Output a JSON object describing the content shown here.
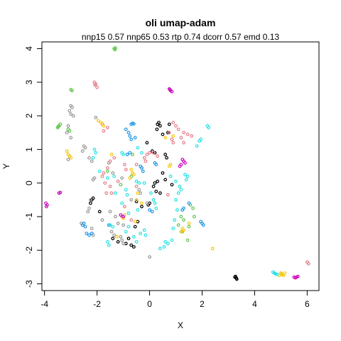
{
  "chart_data": {
    "type": "scatter",
    "title": "oli umap-adam",
    "subtitle": "nnp15 0.57 nnp65 0.53 rtp 0.74 dcorr 0.57 emd 0.13",
    "xlabel": "X",
    "ylabel": "Y",
    "xlim": [
      -4.1,
      6.45
    ],
    "ylim": [
      -3.2,
      4.2
    ],
    "xticks": [
      -4,
      -2,
      0,
      2,
      4,
      6
    ],
    "yticks": [
      -3,
      -2,
      -1,
      0,
      1,
      2,
      3,
      4
    ],
    "grid": false,
    "legend": "none",
    "colors": [
      "#000000",
      "#999999",
      "#61c64f",
      "#e57f8c",
      "#f5c710",
      "#2297e6",
      "#28e2e5",
      "#cd0bbc"
    ],
    "series": [
      {
        "color": "#000000",
        "points": [
          [
            0.3,
            1.75
          ],
          [
            0.35,
            1.8
          ],
          [
            0.4,
            1.7
          ],
          [
            0.28,
            1.6
          ],
          [
            0.5,
            1.45
          ],
          [
            0.7,
            1.5
          ],
          [
            0.75,
            1.75
          ],
          [
            -0.1,
            1.2
          ],
          [
            0.1,
            0.95
          ],
          [
            0.2,
            0.9
          ],
          [
            0.6,
            0.85
          ],
          [
            0.65,
            0.75
          ],
          [
            0.5,
            0.3
          ],
          [
            0.6,
            0.1
          ],
          [
            0.85,
            -0.05
          ],
          [
            0.15,
            -0.1
          ],
          [
            0.2,
            0.0
          ],
          [
            0.3,
            0.05
          ],
          [
            0.25,
            -0.25
          ],
          [
            0.4,
            -0.3
          ],
          [
            0.0,
            -0.6
          ],
          [
            -0.05,
            -0.65
          ],
          [
            -0.5,
            -0.55
          ],
          [
            -0.3,
            -0.7
          ],
          [
            -0.45,
            -1.15
          ],
          [
            -0.55,
            -1.3
          ],
          [
            -2.2,
            -0.5
          ],
          [
            -2.15,
            -0.45
          ],
          [
            -2.25,
            -0.6
          ],
          [
            -1.9,
            -0.85
          ],
          [
            -1.4,
            -1.65
          ],
          [
            -1.2,
            -1.75
          ],
          [
            -0.9,
            -1.8
          ],
          [
            -0.7,
            -1.85
          ],
          [
            -0.6,
            -1.9
          ],
          [
            -0.8,
            -1.65
          ],
          [
            3.25,
            -2.8
          ],
          [
            3.3,
            -2.83
          ],
          [
            3.32,
            -2.86
          ],
          [
            3.27,
            -2.78
          ]
        ]
      },
      {
        "color": "#999999",
        "points": [
          [
            -3.0,
            2.3
          ],
          [
            -2.95,
            2.25
          ],
          [
            -3.05,
            2.15
          ],
          [
            -3.0,
            2.05
          ],
          [
            -2.9,
            2.0
          ],
          [
            -3.1,
            1.7
          ],
          [
            -3.15,
            1.5
          ],
          [
            -3.0,
            1.35
          ],
          [
            -3.05,
            0.8
          ],
          [
            -3.1,
            0.7
          ],
          [
            -2.5,
            1.1
          ],
          [
            -2.45,
            1.05
          ],
          [
            -2.55,
            0.95
          ],
          [
            -2.3,
            0.75
          ],
          [
            -2.2,
            0.65
          ],
          [
            -2.15,
            0.1
          ],
          [
            -2.1,
            0.15
          ],
          [
            -2.25,
            -0.5
          ],
          [
            -2.3,
            -0.75
          ],
          [
            -2.35,
            -0.85
          ],
          [
            -2.6,
            -1.2
          ],
          [
            -2.2,
            -1.35
          ],
          [
            -2.2,
            -1.5
          ],
          [
            -2.15,
            -1.55
          ],
          [
            -1.8,
            -1.1
          ],
          [
            -1.5,
            -0.85
          ],
          [
            -1.3,
            -1.0
          ],
          [
            -1.2,
            -1.2
          ],
          [
            -1.0,
            -1.25
          ],
          [
            -1.45,
            -1.45
          ],
          [
            -1.35,
            -1.55
          ],
          [
            -1.1,
            -1.6
          ],
          [
            -1.05,
            -1.7
          ],
          [
            -1.0,
            -1.8
          ],
          [
            -0.4,
            -0.2
          ],
          [
            -0.35,
            -0.3
          ],
          [
            -0.7,
            -0.5
          ],
          [
            -0.1,
            -0.6
          ],
          [
            0.0,
            -2.2
          ],
          [
            -1.4,
            0.3
          ],
          [
            -1.55,
            0.6
          ],
          [
            -2.05,
            1.95
          ],
          [
            -1.05,
            0.15
          ]
        ]
      },
      {
        "color": "#61c64f",
        "points": [
          [
            -1.35,
            4.0
          ],
          [
            -1.3,
            4.02
          ],
          [
            -1.32,
            3.97
          ],
          [
            -3.0,
            2.78
          ],
          [
            -2.95,
            2.75
          ],
          [
            -3.1,
            1.6
          ],
          [
            -3.05,
            1.55
          ],
          [
            -3.5,
            1.65
          ],
          [
            -3.45,
            1.7
          ],
          [
            -3.4,
            1.75
          ],
          [
            -3.48,
            1.68
          ],
          [
            -0.65,
            0.85
          ],
          [
            -0.7,
            0.2
          ],
          [
            -1.6,
            0.35
          ],
          [
            -1.1,
            -0.05
          ],
          [
            1.2,
            -1.0
          ],
          [
            1.3,
            -1.1
          ],
          [
            1.55,
            -0.65
          ],
          [
            1.65,
            -0.75
          ],
          [
            1.7,
            -1.0
          ],
          [
            1.5,
            -1.3
          ],
          [
            1.45,
            -1.7
          ],
          [
            1.1,
            -1.25
          ],
          [
            1.25,
            -1.45
          ]
        ]
      },
      {
        "color": "#e57f8c",
        "points": [
          [
            -2.1,
            3.0
          ],
          [
            -2.05,
            2.95
          ],
          [
            -2.0,
            2.85
          ],
          [
            -2.08,
            2.92
          ],
          [
            -1.8,
            1.75
          ],
          [
            -1.6,
            1.65
          ],
          [
            -1.75,
            1.55
          ],
          [
            0.9,
            1.8
          ],
          [
            1.0,
            1.7
          ],
          [
            1.1,
            1.6
          ],
          [
            1.3,
            1.5
          ],
          [
            1.45,
            1.45
          ],
          [
            1.6,
            1.4
          ],
          [
            0.75,
            1.5
          ],
          [
            0.85,
            1.3
          ],
          [
            0.9,
            1.2
          ],
          [
            1.2,
            1.35
          ],
          [
            1.3,
            1.2
          ],
          [
            0.15,
            0.9
          ],
          [
            0.0,
            0.9
          ],
          [
            -0.1,
            0.85
          ],
          [
            -0.2,
            0.75
          ],
          [
            -0.15,
            0.65
          ],
          [
            0.3,
            0.8
          ],
          [
            -1.35,
            0.75
          ],
          [
            -1.5,
            0.65
          ],
          [
            -1.6,
            0.45
          ],
          [
            -1.75,
            0.3
          ],
          [
            -1.8,
            0.2
          ],
          [
            -1.7,
            0.0
          ],
          [
            -1.5,
            -0.1
          ],
          [
            -1.45,
            -0.3
          ],
          [
            -0.95,
            0.55
          ],
          [
            -0.9,
            0.4
          ],
          [
            -0.5,
            0.55
          ],
          [
            -0.3,
            0.45
          ],
          [
            -1.2,
            0.05
          ],
          [
            -0.5,
            -0.1
          ],
          [
            -0.95,
            -0.7
          ],
          [
            -1.05,
            -1.0
          ],
          [
            -0.7,
            -1.1
          ],
          [
            6.0,
            -2.35
          ],
          [
            6.05,
            -2.4
          ],
          [
            -1.65,
            -0.3
          ],
          [
            0.7,
            -0.35
          ]
        ]
      },
      {
        "color": "#f5c710",
        "points": [
          [
            -1.95,
            1.85
          ],
          [
            -1.85,
            1.8
          ],
          [
            -1.75,
            1.7
          ],
          [
            -3.15,
            0.95
          ],
          [
            -3.1,
            0.85
          ],
          [
            -3.0,
            0.75
          ],
          [
            -3.05,
            0.8
          ],
          [
            0.6,
            1.35
          ],
          [
            0.9,
            1.4
          ],
          [
            0.75,
            0.5
          ],
          [
            0.8,
            0.55
          ],
          [
            -1.45,
            0.85
          ],
          [
            -0.7,
            0.4
          ],
          [
            -0.65,
            0.3
          ],
          [
            -0.6,
            0.25
          ],
          [
            -0.75,
            0.15
          ],
          [
            -0.3,
            -0.6
          ],
          [
            -0.45,
            -0.3
          ],
          [
            -0.5,
            -0.5
          ],
          [
            -0.95,
            -0.95
          ],
          [
            -1.0,
            -1.05
          ],
          [
            -0.55,
            -1.15
          ],
          [
            1.2,
            -1.45
          ],
          [
            1.25,
            -1.35
          ],
          [
            1.3,
            -1.4
          ],
          [
            1.5,
            -1.2
          ],
          [
            2.4,
            -1.95
          ],
          [
            5.0,
            -2.7
          ],
          [
            5.05,
            -2.72
          ],
          [
            5.1,
            -2.75
          ],
          [
            5.15,
            -2.68
          ],
          [
            4.95,
            -2.75
          ],
          [
            5.0,
            -2.68
          ],
          [
            -1.25,
            -1.6
          ]
        ]
      },
      {
        "color": "#2297e6",
        "points": [
          [
            -0.7,
            1.75
          ],
          [
            -0.65,
            1.78
          ],
          [
            -0.6,
            1.76
          ],
          [
            -0.9,
            1.6
          ],
          [
            -0.8,
            1.5
          ],
          [
            -0.75,
            1.4
          ],
          [
            -0.55,
            1.35
          ],
          [
            -0.7,
            1.3
          ],
          [
            -0.75,
            0.9
          ],
          [
            -0.85,
            0.85
          ],
          [
            0.2,
            0.6
          ],
          [
            0.25,
            0.55
          ],
          [
            -0.35,
            0.5
          ],
          [
            -0.3,
            0.45
          ],
          [
            -0.25,
            0.35
          ],
          [
            -2.5,
            -1.2
          ],
          [
            -2.45,
            -1.3
          ],
          [
            -2.55,
            -1.25
          ],
          [
            -2.4,
            -1.5
          ],
          [
            -2.3,
            -1.55
          ],
          [
            -2.2,
            -1.5
          ],
          [
            -1.55,
            -1.25
          ],
          [
            1.95,
            -1.15
          ],
          [
            2.0,
            -1.2
          ],
          [
            2.05,
            -1.25
          ],
          [
            1.25,
            -0.8
          ],
          [
            1.3,
            -0.75
          ],
          [
            1.5,
            -0.6
          ],
          [
            0.0,
            -0.8
          ],
          [
            0.1,
            -0.85
          ]
        ]
      },
      {
        "color": "#28e2e5",
        "points": [
          [
            2.25,
            1.65
          ],
          [
            2.2,
            1.7
          ],
          [
            1.95,
            1.3
          ],
          [
            1.9,
            1.25
          ],
          [
            1.8,
            1.1
          ],
          [
            -2.1,
            1.0
          ],
          [
            -2.05,
            0.9
          ],
          [
            -2.15,
            0.75
          ],
          [
            -1.05,
            0.9
          ],
          [
            -1.0,
            0.85
          ],
          [
            -0.45,
            1.05
          ],
          [
            -0.3,
            0.9
          ],
          [
            -1.9,
            0.35
          ],
          [
            -1.3,
            -0.3
          ],
          [
            -0.9,
            -0.2
          ],
          [
            -0.85,
            -0.35
          ],
          [
            -0.5,
            0.05
          ],
          [
            -0.4,
            0.0
          ],
          [
            -0.2,
            0.0
          ],
          [
            0.05,
            -0.3
          ],
          [
            0.15,
            -0.5
          ],
          [
            0.2,
            -0.6
          ],
          [
            0.25,
            -0.75
          ],
          [
            0.8,
            0.2
          ],
          [
            1.0,
            0.05
          ],
          [
            1.15,
            -0.1
          ],
          [
            1.4,
            0.1
          ],
          [
            1.45,
            0.2
          ],
          [
            1.35,
            0.25
          ],
          [
            1.2,
            -0.2
          ],
          [
            1.1,
            -0.3
          ],
          [
            1.0,
            -0.5
          ],
          [
            1.05,
            -0.8
          ],
          [
            0.95,
            -1.1
          ],
          [
            0.9,
            -1.35
          ],
          [
            0.85,
            -1.7
          ],
          [
            0.7,
            -1.8
          ],
          [
            0.55,
            -1.9
          ],
          [
            0.4,
            -1.95
          ],
          [
            0.6,
            -1.75
          ],
          [
            -0.15,
            -1.55
          ],
          [
            -0.2,
            -1.4
          ],
          [
            -0.35,
            -1.5
          ],
          [
            -0.5,
            -1.75
          ],
          [
            -0.6,
            -1.6
          ],
          [
            -1.5,
            -1.25
          ],
          [
            -1.4,
            -1.3
          ],
          [
            -0.8,
            -1.3
          ],
          [
            -0.9,
            -1.45
          ],
          [
            -1.6,
            -1.75
          ],
          [
            -1.55,
            -1.85
          ],
          [
            4.75,
            -2.68
          ],
          [
            4.8,
            -2.7
          ],
          [
            4.85,
            -2.72
          ],
          [
            4.7,
            -2.65
          ],
          [
            -1.6,
            0.15
          ],
          [
            -1.35,
            0.2
          ],
          [
            -1.05,
            -0.6
          ],
          [
            -0.8,
            -0.9
          ],
          [
            -0.45,
            -0.8
          ]
        ]
      },
      {
        "color": "#cd0bbc",
        "points": [
          [
            0.75,
            2.8
          ],
          [
            0.8,
            2.75
          ],
          [
            0.85,
            2.72
          ],
          [
            0.78,
            2.78
          ],
          [
            1.25,
            0.7
          ],
          [
            1.3,
            0.65
          ],
          [
            1.35,
            0.6
          ],
          [
            1.2,
            0.55
          ],
          [
            1.15,
            0.5
          ],
          [
            -3.95,
            -0.6
          ],
          [
            -3.9,
            -0.65
          ],
          [
            -3.93,
            -0.7
          ],
          [
            -3.45,
            -0.3
          ],
          [
            -3.4,
            -0.28
          ],
          [
            5.6,
            -2.8
          ],
          [
            5.65,
            -2.78
          ],
          [
            5.55,
            -2.82
          ],
          [
            5.5,
            -2.8
          ],
          [
            -1.1,
            -0.95
          ],
          [
            -1.0,
            -1.0
          ]
        ]
      }
    ]
  }
}
